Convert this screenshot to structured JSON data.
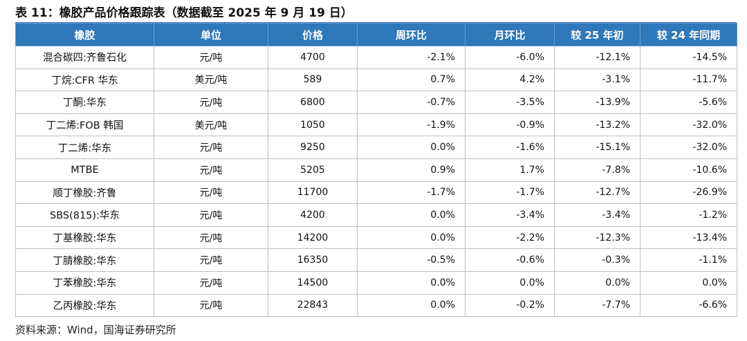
{
  "title": "表 11：橡胶产品价格跟踪表（数据截至 2025 年 9 月 19 日）",
  "columns": [
    "橡胶",
    "单位",
    "价格",
    "周环比",
    "月环比",
    "较 25 年初",
    "较 24 年同期"
  ],
  "rows": [
    {
      "name": "混合碳四:齐鲁石化",
      "unit": "元/吨",
      "price": "4700",
      "wow": "-2.1%",
      "mom": "-6.0%",
      "ytd": "-12.1%",
      "yoy": "-14.5%"
    },
    {
      "name": "丁烷:CFR 华东",
      "unit": "美元/吨",
      "price": "589",
      "wow": "0.7%",
      "mom": "4.2%",
      "ytd": "-3.1%",
      "yoy": "-11.7%"
    },
    {
      "name": "丁酮:华东",
      "unit": "元/吨",
      "price": "6800",
      "wow": "-0.7%",
      "mom": "-3.5%",
      "ytd": "-13.9%",
      "yoy": "-5.6%"
    },
    {
      "name": "丁二烯:FOB 韩国",
      "unit": "美元/吨",
      "price": "1050",
      "wow": "-1.9%",
      "mom": "-0.9%",
      "ytd": "-13.2%",
      "yoy": "-32.0%"
    },
    {
      "name": "丁二烯:华东",
      "unit": "元/吨",
      "price": "9250",
      "wow": "0.0%",
      "mom": "-1.6%",
      "ytd": "-15.1%",
      "yoy": "-32.0%"
    },
    {
      "name": "MTBE",
      "unit": "元/吨",
      "price": "5205",
      "wow": "0.9%",
      "mom": "1.7%",
      "ytd": "-7.8%",
      "yoy": "-10.6%"
    },
    {
      "name": "顺丁橡胶:齐鲁",
      "unit": "元/吨",
      "price": "11700",
      "wow": "-1.7%",
      "mom": "-1.7%",
      "ytd": "-12.7%",
      "yoy": "-26.9%"
    },
    {
      "name": "SBS(815):华东",
      "unit": "元/吨",
      "price": "4200",
      "wow": "0.0%",
      "mom": "-3.4%",
      "ytd": "-3.4%",
      "yoy": "-1.2%"
    },
    {
      "name": "丁基橡胶:华东",
      "unit": "元/吨",
      "price": "14200",
      "wow": "0.0%",
      "mom": "-2.2%",
      "ytd": "-12.3%",
      "yoy": "-13.4%"
    },
    {
      "name": "丁腈橡胶:华东",
      "unit": "元/吨",
      "price": "16350",
      "wow": "-0.5%",
      "mom": "-0.6%",
      "ytd": "-0.3%",
      "yoy": "-1.1%"
    },
    {
      "name": "丁苯橡胶:华东",
      "unit": "元/吨",
      "price": "14500",
      "wow": "0.0%",
      "mom": "0.0%",
      "ytd": "0.0%",
      "yoy": "0.0%"
    },
    {
      "name": "乙丙橡胶:华东",
      "unit": "元/吨",
      "price": "22843",
      "wow": "0.0%",
      "mom": "-0.2%",
      "ytd": "-7.7%",
      "yoy": "-6.6%"
    }
  ],
  "source": "资料来源：Wind，国海证券研究所",
  "colors": {
    "header_bg": "#2f78b9",
    "header_text": "#ffffff",
    "grid": "#bfbfbf"
  }
}
